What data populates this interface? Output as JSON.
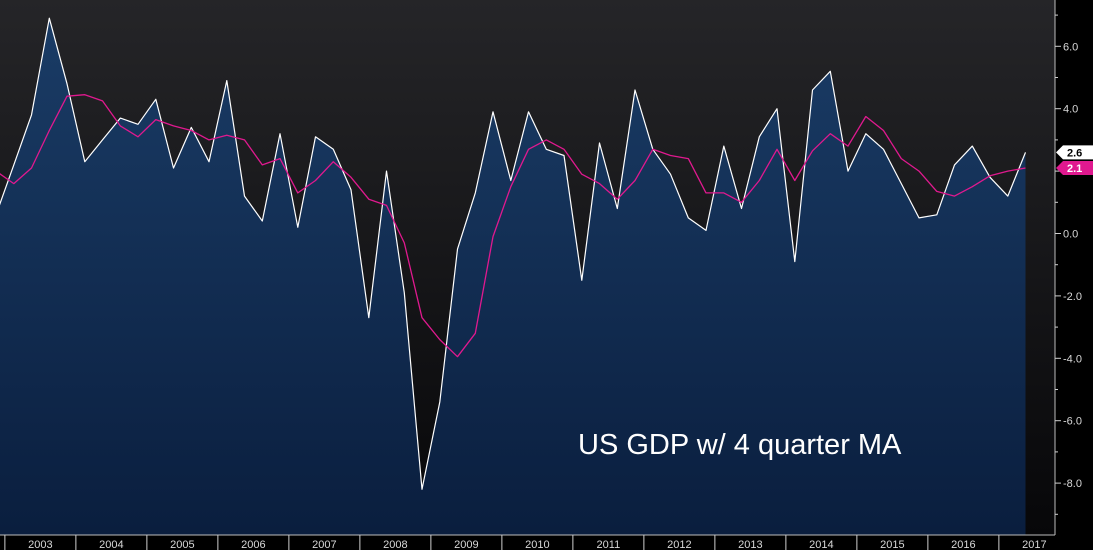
{
  "chart_data": {
    "type": "area",
    "annotation": "US GDP w/ 4 quarter MA",
    "x_axis": {
      "label": "",
      "ticks": [
        "2003",
        "2004",
        "2005",
        "2006",
        "2007",
        "2008",
        "2009",
        "2010",
        "2011",
        "2012",
        "2013",
        "2014",
        "2015",
        "2016",
        "2017"
      ]
    },
    "y_axis": {
      "label": "",
      "position": "right",
      "ylim": [
        -9.5,
        7.3
      ],
      "ticks": [
        "6.0",
        "4.0",
        "2.0",
        "0.0",
        "-2.0",
        "-4.0",
        "-6.0",
        "-8.0"
      ]
    },
    "grid": false,
    "legend": "none",
    "x_start": "2002 Q4",
    "series": [
      {
        "color": "#ffffff",
        "fill": "#0f2a50",
        "last_value_label": "2.6",
        "values": [
          0.6,
          2.2,
          3.8,
          6.9,
          4.8,
          2.3,
          3.0,
          3.7,
          3.5,
          4.3,
          2.1,
          3.4,
          2.3,
          4.9,
          1.2,
          0.4,
          3.2,
          0.2,
          3.1,
          2.7,
          1.4,
          -2.7,
          2.0,
          -1.9,
          -8.2,
          -5.4,
          -0.5,
          1.3,
          3.9,
          1.7,
          3.9,
          2.7,
          2.5,
          -1.5,
          2.9,
          0.8,
          4.6,
          2.7,
          1.9,
          0.5,
          0.1,
          2.8,
          0.8,
          3.1,
          4.0,
          -0.9,
          4.6,
          5.2,
          2.0,
          3.2,
          2.7,
          1.6,
          0.5,
          0.6,
          2.2,
          2.8,
          1.8,
          1.2,
          2.6
        ]
      },
      {
        "color": "#e0198f",
        "last_value_label": "2.1",
        "values": [
          2.0,
          1.6,
          2.1,
          3.3,
          4.4,
          4.45,
          4.25,
          3.45,
          3.1,
          3.65,
          3.45,
          3.3,
          3.0,
          3.15,
          3.0,
          2.2,
          2.4,
          1.3,
          1.7,
          2.3,
          1.8,
          1.1,
          0.9,
          -0.3,
          -2.7,
          -3.4,
          -3.95,
          -3.2,
          -0.1,
          1.5,
          2.7,
          3.0,
          2.7,
          1.9,
          1.6,
          1.1,
          1.7,
          2.7,
          2.5,
          2.4,
          1.3,
          1.3,
          1.0,
          1.7,
          2.7,
          1.7,
          2.65,
          3.2,
          2.8,
          3.75,
          3.3,
          2.4,
          2.0,
          1.35,
          1.2,
          1.5,
          1.85,
          2.0,
          2.1
        ]
      }
    ]
  }
}
